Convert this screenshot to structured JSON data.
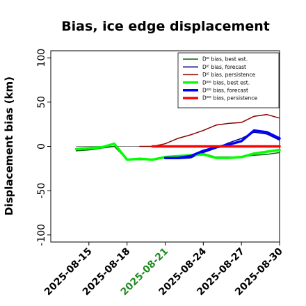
{
  "chart_data": {
    "type": "line",
    "title": "Bias, ice edge displacement",
    "xlabel": "",
    "ylabel": "Displacement bias (km)",
    "ylim": [
      -108,
      108
    ],
    "xlim": [
      "2025-08-12",
      "2025-08-30"
    ],
    "yticks": [
      100,
      50,
      0,
      -50,
      -100
    ],
    "xticks": [
      {
        "label": "2025-08-15",
        "x": "2025-08-15",
        "color": "#000000"
      },
      {
        "label": "2025-08-18",
        "x": "2025-08-18",
        "color": "#000000"
      },
      {
        "label": "2025-08-21",
        "x": "2025-08-21",
        "color": "#228b22"
      },
      {
        "label": "2025-08-24",
        "x": "2025-08-24",
        "color": "#000000"
      },
      {
        "label": "2025-08-27",
        "x": "2025-08-27",
        "color": "#000000"
      },
      {
        "label": "2025-08-30",
        "x": "2025-08-30",
        "color": "#000000"
      }
    ],
    "grid": false,
    "legend_position": "top-right",
    "zero_line": true,
    "series": [
      {
        "name": "Dᴵᴱ bias, best est.",
        "color": "#006400",
        "width": 1.5,
        "points": [
          [
            "2025-08-14",
            -5
          ],
          [
            "2025-08-15",
            -4
          ],
          [
            "2025-08-16",
            -2
          ],
          [
            "2025-08-17",
            0
          ],
          [
            "2025-08-18",
            -15
          ],
          [
            "2025-08-19",
            -15
          ],
          [
            "2025-08-20",
            -15
          ],
          [
            "2025-08-21",
            -13
          ],
          [
            "2025-08-22",
            -12
          ],
          [
            "2025-08-23",
            -10
          ],
          [
            "2025-08-24",
            -8
          ],
          [
            "2025-08-25",
            -12
          ],
          [
            "2025-08-26",
            -12
          ],
          [
            "2025-08-27",
            -12
          ],
          [
            "2025-08-28",
            -10
          ],
          [
            "2025-08-29",
            -9
          ],
          [
            "2025-08-30",
            -7
          ]
        ]
      },
      {
        "name": "Dᴵᴱ bias, forecast",
        "color": "#00008b",
        "width": 1.5,
        "points": [
          [
            "2025-08-21",
            -14
          ],
          [
            "2025-08-22",
            -14
          ],
          [
            "2025-08-23",
            -13
          ],
          [
            "2025-08-24",
            -7
          ],
          [
            "2025-08-25",
            -2
          ],
          [
            "2025-08-26",
            4
          ],
          [
            "2025-08-27",
            9
          ],
          [
            "2025-08-28",
            16
          ],
          [
            "2025-08-29",
            14
          ],
          [
            "2025-08-30",
            7
          ]
        ]
      },
      {
        "name": "Dᴵᴱ bias, persistence",
        "color": "#8b0000",
        "width": 1.5,
        "points": [
          [
            "2025-08-19",
            0
          ],
          [
            "2025-08-20",
            0
          ],
          [
            "2025-08-21",
            3
          ],
          [
            "2025-08-22",
            9
          ],
          [
            "2025-08-23",
            13
          ],
          [
            "2025-08-24",
            18
          ],
          [
            "2025-08-25",
            24
          ],
          [
            "2025-08-26",
            26
          ],
          [
            "2025-08-27",
            27
          ],
          [
            "2025-08-28",
            34
          ],
          [
            "2025-08-29",
            36
          ],
          [
            "2025-08-30",
            32
          ]
        ]
      },
      {
        "name": "Dᴵᴱᴱ bias, best est.",
        "color": "#00ff00",
        "width": 3.5,
        "points": [
          [
            "2025-08-14",
            -3
          ],
          [
            "2025-08-15",
            -2
          ],
          [
            "2025-08-16",
            -1
          ],
          [
            "2025-08-17",
            3
          ],
          [
            "2025-08-18",
            -15
          ],
          [
            "2025-08-19",
            -14
          ],
          [
            "2025-08-20",
            -15
          ],
          [
            "2025-08-21",
            -12
          ],
          [
            "2025-08-22",
            -11
          ],
          [
            "2025-08-23",
            -10
          ],
          [
            "2025-08-24",
            -9
          ],
          [
            "2025-08-25",
            -13
          ],
          [
            "2025-08-26",
            -13
          ],
          [
            "2025-08-27",
            -12
          ],
          [
            "2025-08-28",
            -8
          ],
          [
            "2025-08-29",
            -6
          ],
          [
            "2025-08-30",
            -4
          ]
        ]
      },
      {
        "name": "Dᴵᴱᴱ bias, forecast",
        "color": "#0000ff",
        "width": 3.5,
        "points": [
          [
            "2025-08-21",
            -13
          ],
          [
            "2025-08-22",
            -13
          ],
          [
            "2025-08-23",
            -11
          ],
          [
            "2025-08-24",
            -5
          ],
          [
            "2025-08-25",
            -1
          ],
          [
            "2025-08-26",
            2
          ],
          [
            "2025-08-27",
            6
          ],
          [
            "2025-08-28",
            18
          ],
          [
            "2025-08-29",
            16
          ],
          [
            "2025-08-30",
            9
          ]
        ]
      },
      {
        "name": "Dᴵᴱᴱ bias, persistence",
        "color": "#ff0000",
        "width": 3.5,
        "points": [
          [
            "2025-08-20",
            0
          ],
          [
            "2025-08-21",
            0
          ],
          [
            "2025-08-22",
            0
          ],
          [
            "2025-08-23",
            0
          ],
          [
            "2025-08-24",
            0
          ],
          [
            "2025-08-25",
            0
          ],
          [
            "2025-08-26",
            0
          ],
          [
            "2025-08-27",
            0
          ],
          [
            "2025-08-28",
            0
          ],
          [
            "2025-08-29",
            0
          ],
          [
            "2025-08-30",
            0
          ]
        ]
      }
    ]
  }
}
